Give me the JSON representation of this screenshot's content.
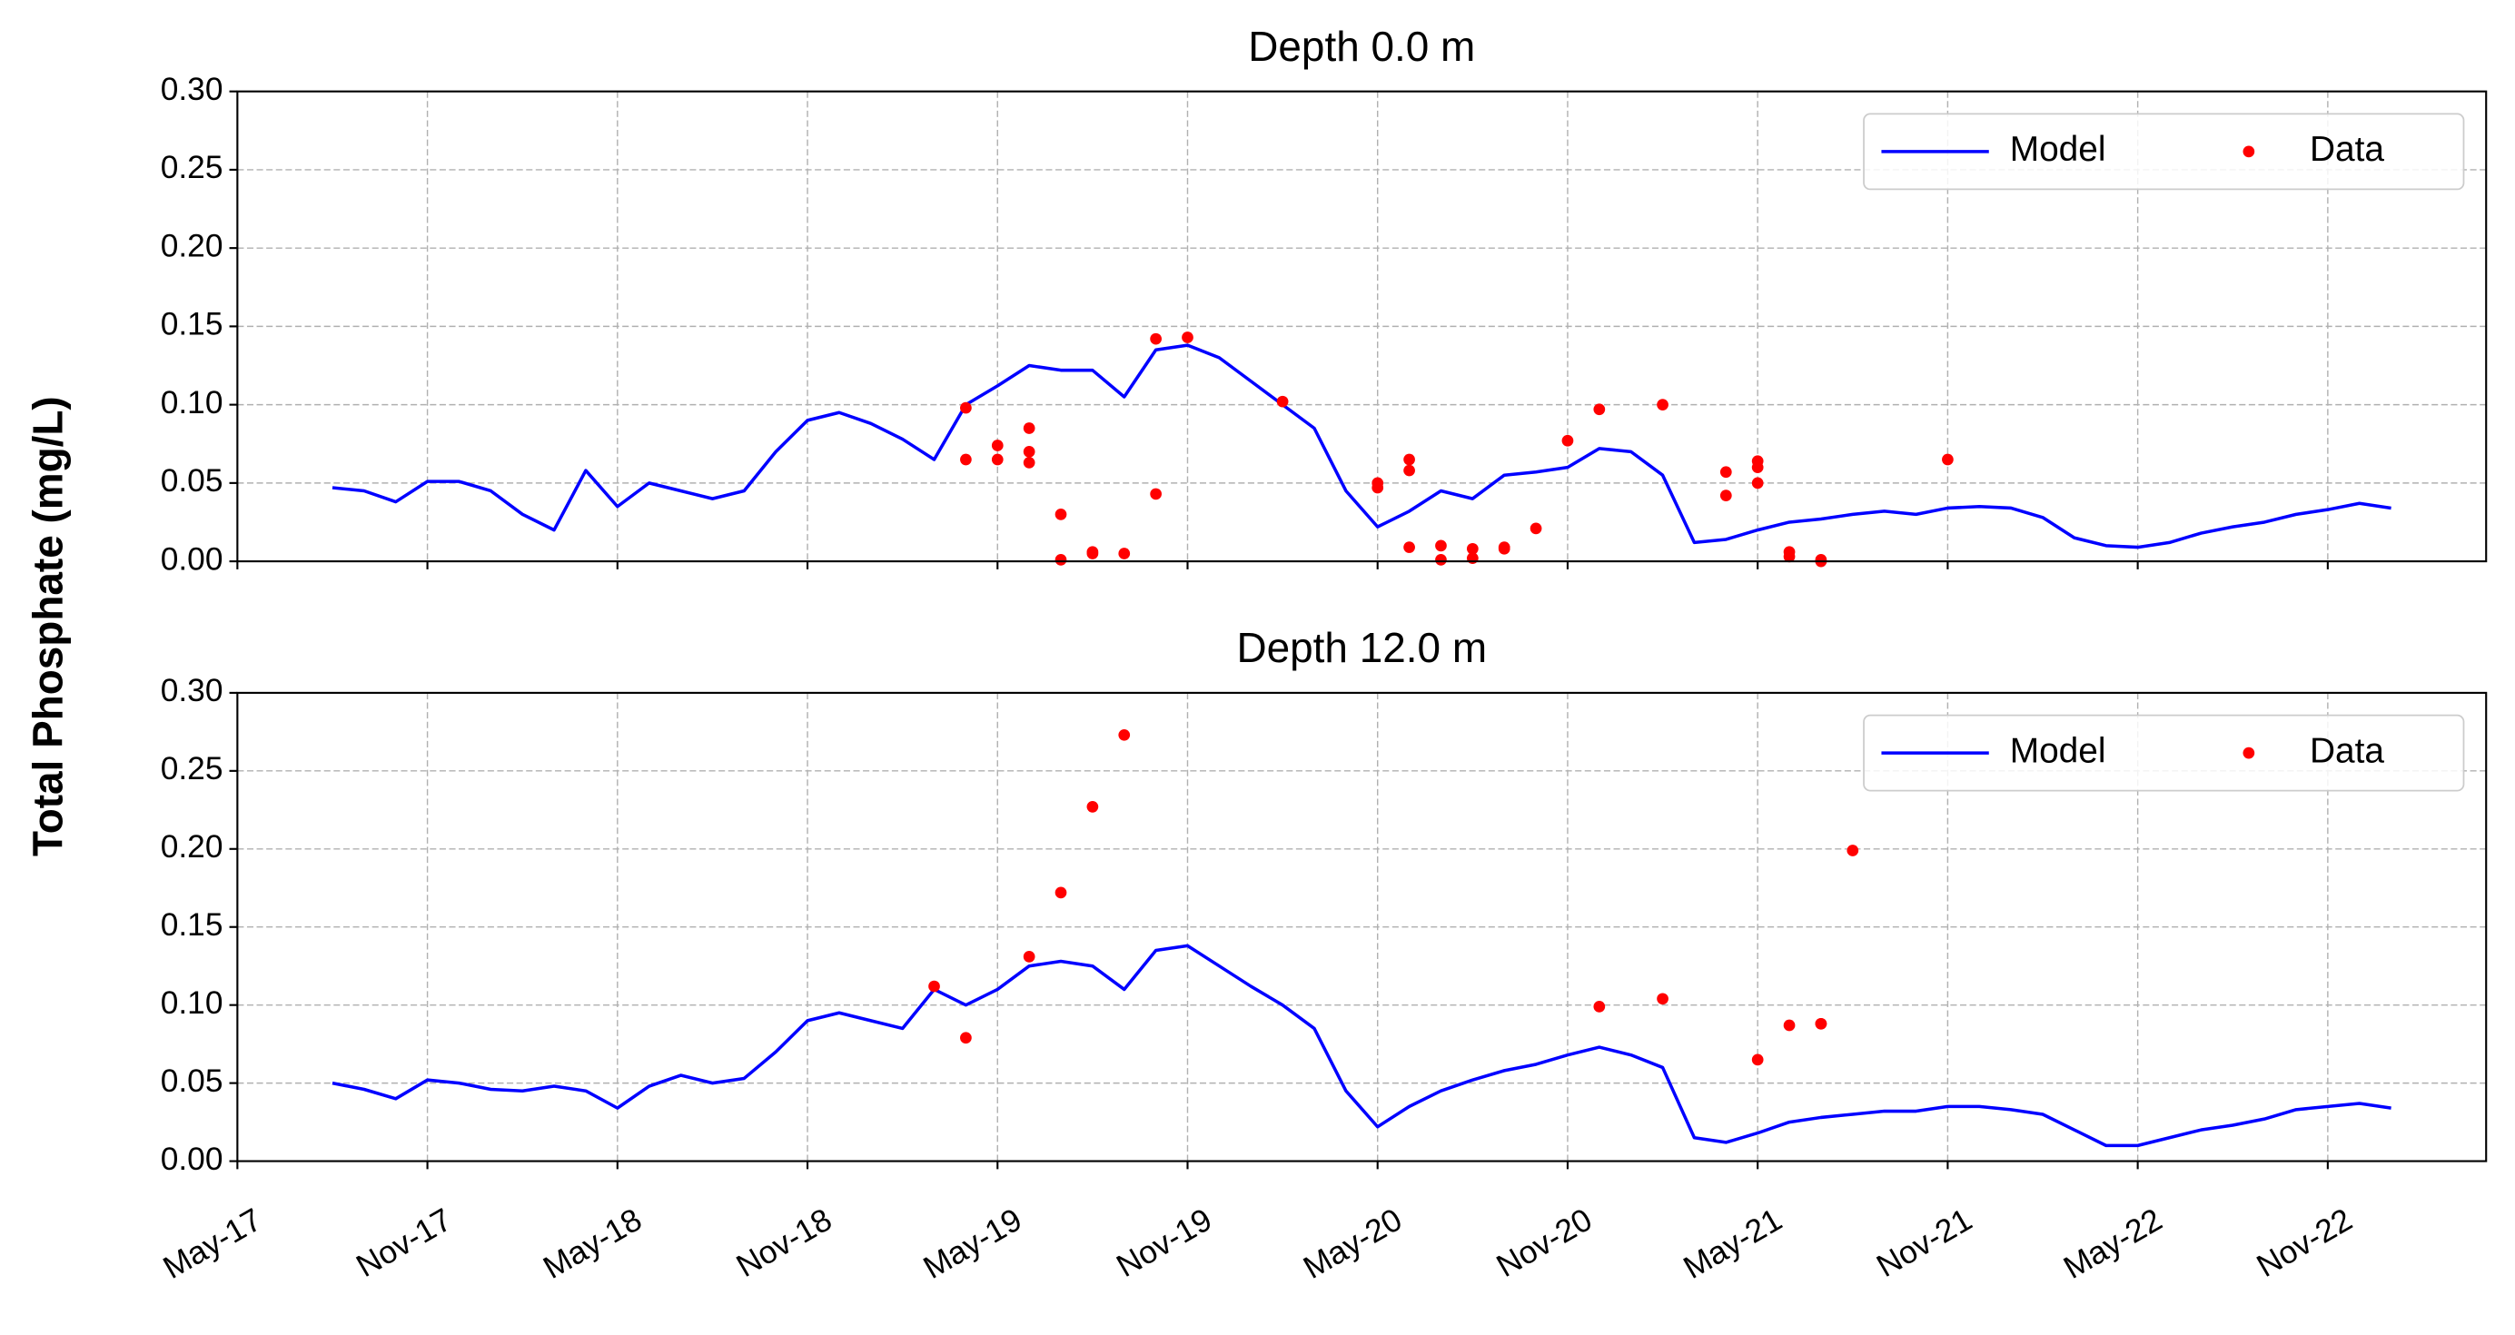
{
  "chart_data": [
    {
      "type": "line",
      "title": "Depth 0.0 m",
      "ylabel": "Total Phosphate (mg/L)",
      "xlim": [
        "2017-05",
        "2023-04"
      ],
      "xticks": [
        "2017-05",
        "2017-11",
        "2018-05",
        "2018-11",
        "2019-05",
        "2019-11",
        "2020-05",
        "2020-11",
        "2021-05",
        "2021-11",
        "2022-05",
        "2022-11"
      ],
      "ylim": [
        0,
        0.3
      ],
      "yticks": [
        {
          "value": 0,
          "label": "0.00"
        },
        {
          "value": 0.05,
          "label": "0.05"
        },
        {
          "value": 0.1,
          "label": "0.10"
        },
        {
          "value": 0.15,
          "label": "0.15"
        },
        {
          "value": 0.2,
          "label": "0.20"
        },
        {
          "value": 0.25,
          "label": "0.25"
        },
        {
          "value": 0.3,
          "label": "0.30"
        }
      ],
      "grid": true,
      "legend": "upper right",
      "series": [
        {
          "name": "Model",
          "type": "line",
          "color": "#0000ff",
          "x": [
            "2017-08",
            "2017-09",
            "2017-10",
            "2017-11",
            "2017-12",
            "2018-01",
            "2018-02",
            "2018-03",
            "2018-04",
            "2018-05",
            "2018-06",
            "2018-07",
            "2018-08",
            "2018-09",
            "2018-10",
            "2018-11",
            "2018-12",
            "2019-01",
            "2019-02",
            "2019-03",
            "2019-04",
            "2019-05",
            "2019-06",
            "2019-07",
            "2019-08",
            "2019-09",
            "2019-10",
            "2019-11",
            "2019-12",
            "2020-01",
            "2020-02",
            "2020-03",
            "2020-04",
            "2020-05",
            "2020-06",
            "2020-07",
            "2020-08",
            "2020-09",
            "2020-10",
            "2020-11",
            "2020-12",
            "2021-01",
            "2021-02",
            "2021-03",
            "2021-04",
            "2021-05",
            "2021-06",
            "2021-07",
            "2021-08",
            "2021-09",
            "2021-10",
            "2021-11",
            "2021-12",
            "2022-01",
            "2022-02",
            "2022-03",
            "2022-04",
            "2022-05",
            "2022-06",
            "2022-07",
            "2022-08",
            "2022-09",
            "2022-10",
            "2022-11",
            "2022-12",
            "2023-01"
          ],
          "values": [
            0.047,
            0.045,
            0.038,
            0.051,
            0.051,
            0.045,
            0.03,
            0.02,
            0.058,
            0.035,
            0.05,
            0.045,
            0.04,
            0.045,
            0.07,
            0.09,
            0.095,
            0.088,
            0.078,
            0.065,
            0.1,
            0.112,
            0.125,
            0.122,
            0.122,
            0.105,
            0.135,
            0.138,
            0.13,
            0.115,
            0.1,
            0.085,
            0.045,
            0.022,
            0.032,
            0.045,
            0.04,
            0.055,
            0.057,
            0.06,
            0.072,
            0.07,
            0.055,
            0.012,
            0.014,
            0.02,
            0.025,
            0.027,
            0.03,
            0.032,
            0.03,
            0.034,
            0.035,
            0.034,
            0.028,
            0.015,
            0.01,
            0.009,
            0.012,
            0.018,
            0.022,
            0.025,
            0.03,
            0.033,
            0.037,
            0.034
          ]
        },
        {
          "name": "Data",
          "type": "scatter",
          "color": "#ff0000",
          "x": [
            "2019-04",
            "2019-04",
            "2019-05",
            "2019-05",
            "2019-06",
            "2019-06",
            "2019-06",
            "2019-07",
            "2019-07",
            "2019-08",
            "2019-08",
            "2019-09",
            "2019-10",
            "2019-10",
            "2019-11",
            "2020-02",
            "2020-05",
            "2020-05",
            "2020-06",
            "2020-06",
            "2020-06",
            "2020-07",
            "2020-07",
            "2020-08",
            "2020-08",
            "2020-09",
            "2020-09",
            "2020-10",
            "2020-11",
            "2020-12",
            "2021-02",
            "2021-04",
            "2021-04",
            "2021-05",
            "2021-05",
            "2021-05",
            "2021-06",
            "2021-06",
            "2021-07",
            "2021-07",
            "2021-11"
          ],
          "values": [
            0.098,
            0.065,
            0.074,
            0.065,
            0.085,
            0.063,
            0.07,
            0.03,
            0.001,
            0.006,
            0.005,
            0.005,
            0.043,
            0.142,
            0.143,
            0.102,
            0.047,
            0.05,
            0.065,
            0.058,
            0.009,
            0.01,
            0.001,
            0.008,
            0.002,
            0.008,
            0.009,
            0.021,
            0.077,
            0.097,
            0.1,
            0.057,
            0.042,
            0.064,
            0.06,
            0.05,
            0.006,
            0.003,
            0.001,
            0.0,
            0.065
          ]
        }
      ]
    },
    {
      "type": "line",
      "title": "Depth 12.0 m",
      "xlim": [
        "2017-05",
        "2023-04"
      ],
      "xticks": [
        {
          "value": "2017-05",
          "label": "May-17"
        },
        {
          "value": "2017-11",
          "label": "Nov-17"
        },
        {
          "value": "2018-05",
          "label": "May-18"
        },
        {
          "value": "2018-11",
          "label": "Nov-18"
        },
        {
          "value": "2019-05",
          "label": "May-19"
        },
        {
          "value": "2019-11",
          "label": "Nov-19"
        },
        {
          "value": "2020-05",
          "label": "May-20"
        },
        {
          "value": "2020-11",
          "label": "Nov-20"
        },
        {
          "value": "2021-05",
          "label": "May-21"
        },
        {
          "value": "2021-11",
          "label": "Nov-21"
        },
        {
          "value": "2022-05",
          "label": "May-22"
        },
        {
          "value": "2022-11",
          "label": "Nov-22"
        }
      ],
      "ylim": [
        0,
        0.3
      ],
      "yticks": [
        {
          "value": 0,
          "label": "0.00"
        },
        {
          "value": 0.05,
          "label": "0.05"
        },
        {
          "value": 0.1,
          "label": "0.10"
        },
        {
          "value": 0.15,
          "label": "0.15"
        },
        {
          "value": 0.2,
          "label": "0.20"
        },
        {
          "value": 0.25,
          "label": "0.25"
        },
        {
          "value": 0.3,
          "label": "0.30"
        }
      ],
      "grid": true,
      "legend": "upper right",
      "series": [
        {
          "name": "Model",
          "type": "line",
          "color": "#0000ff",
          "x": [
            "2017-08",
            "2017-09",
            "2017-10",
            "2017-11",
            "2017-12",
            "2018-01",
            "2018-02",
            "2018-03",
            "2018-04",
            "2018-05",
            "2018-06",
            "2018-07",
            "2018-08",
            "2018-09",
            "2018-10",
            "2018-11",
            "2018-12",
            "2019-01",
            "2019-02",
            "2019-03",
            "2019-04",
            "2019-05",
            "2019-06",
            "2019-07",
            "2019-08",
            "2019-09",
            "2019-10",
            "2019-11",
            "2019-12",
            "2020-01",
            "2020-02",
            "2020-03",
            "2020-04",
            "2020-05",
            "2020-06",
            "2020-07",
            "2020-08",
            "2020-09",
            "2020-10",
            "2020-11",
            "2020-12",
            "2021-01",
            "2021-02",
            "2021-03",
            "2021-04",
            "2021-05",
            "2021-06",
            "2021-07",
            "2021-08",
            "2021-09",
            "2021-10",
            "2021-11",
            "2021-12",
            "2022-01",
            "2022-02",
            "2022-03",
            "2022-04",
            "2022-05",
            "2022-06",
            "2022-07",
            "2022-08",
            "2022-09",
            "2022-10",
            "2022-11",
            "2022-12",
            "2023-01"
          ],
          "values": [
            0.05,
            0.046,
            0.04,
            0.052,
            0.05,
            0.046,
            0.045,
            0.048,
            0.045,
            0.034,
            0.048,
            0.055,
            0.05,
            0.053,
            0.07,
            0.09,
            0.095,
            0.09,
            0.085,
            0.11,
            0.1,
            0.11,
            0.125,
            0.128,
            0.125,
            0.11,
            0.135,
            0.138,
            0.125,
            0.112,
            0.1,
            0.085,
            0.045,
            0.022,
            0.035,
            0.045,
            0.052,
            0.058,
            0.062,
            0.068,
            0.073,
            0.068,
            0.06,
            0.015,
            0.012,
            0.018,
            0.025,
            0.028,
            0.03,
            0.032,
            0.032,
            0.035,
            0.035,
            0.033,
            0.03,
            0.02,
            0.01,
            0.01,
            0.015,
            0.02,
            0.023,
            0.027,
            0.033,
            0.035,
            0.037,
            0.034
          ]
        },
        {
          "name": "Data",
          "type": "scatter",
          "color": "#ff0000",
          "x": [
            "2019-03",
            "2019-04",
            "2019-06",
            "2019-07",
            "2019-08",
            "2019-09",
            "2020-12",
            "2021-02",
            "2021-05",
            "2021-06",
            "2021-07",
            "2021-07",
            "2021-08"
          ],
          "values": [
            0.112,
            0.079,
            0.131,
            0.172,
            0.227,
            0.273,
            0.099,
            0.104,
            0.065,
            0.087,
            0.088,
            0.088,
            0.199
          ]
        }
      ]
    }
  ]
}
